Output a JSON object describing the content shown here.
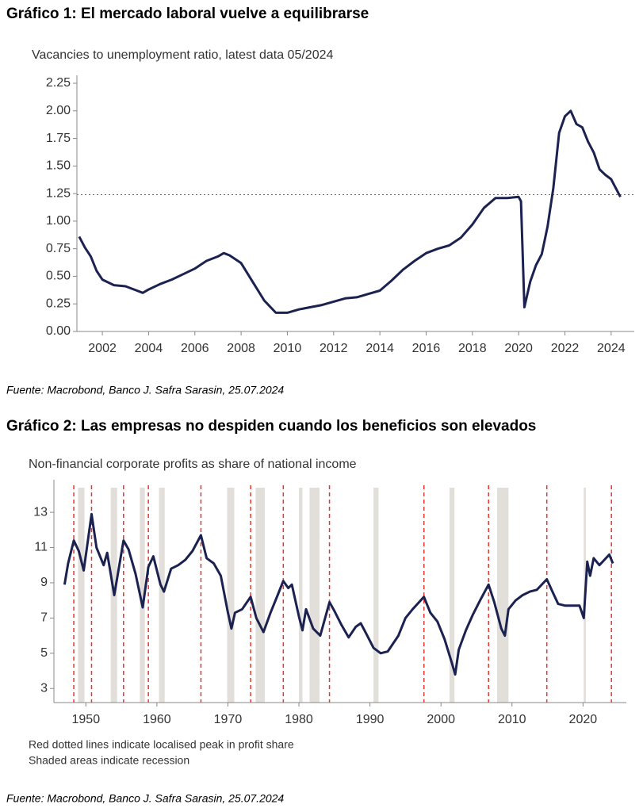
{
  "chart_data": [
    {
      "type": "line",
      "title": "Gráfico 1: El mercado laboral vuelve a equilibrarse",
      "subtitle": "Vacancies to unemployment ratio, latest data 05/2024",
      "source": "Fuente: Macrobond, Banco J. Safra Sarasin, 25.07.2024",
      "x": [
        2001.0,
        2001.25,
        2001.5,
        2001.75,
        2002.0,
        2002.5,
        2003.0,
        2003.5,
        2003.75,
        2004.0,
        2004.5,
        2005.0,
        2005.5,
        2006.0,
        2006.5,
        2007.0,
        2007.25,
        2007.5,
        2008.0,
        2008.5,
        2009.0,
        2009.5,
        2010.0,
        2010.5,
        2011.0,
        2011.5,
        2012.0,
        2012.5,
        2013.0,
        2013.5,
        2014.0,
        2014.5,
        2015.0,
        2015.5,
        2016.0,
        2016.5,
        2017.0,
        2017.5,
        2018.0,
        2018.5,
        2019.0,
        2019.5,
        2020.0,
        2020.1,
        2020.25,
        2020.5,
        2020.75,
        2021.0,
        2021.25,
        2021.5,
        2021.75,
        2022.0,
        2022.25,
        2022.5,
        2022.75,
        2023.0,
        2023.25,
        2023.5,
        2023.75,
        2024.0,
        2024.25,
        2024.4
      ],
      "series": [
        {
          "color": "#1b2250",
          "values": [
            0.86,
            0.76,
            0.68,
            0.55,
            0.47,
            0.42,
            0.41,
            0.37,
            0.35,
            0.38,
            0.43,
            0.47,
            0.52,
            0.57,
            0.64,
            0.68,
            0.71,
            0.69,
            0.62,
            0.45,
            0.28,
            0.17,
            0.17,
            0.2,
            0.22,
            0.24,
            0.27,
            0.3,
            0.31,
            0.34,
            0.37,
            0.46,
            0.56,
            0.64,
            0.71,
            0.75,
            0.78,
            0.85,
            0.97,
            1.12,
            1.21,
            1.21,
            1.22,
            1.18,
            0.22,
            0.45,
            0.6,
            0.7,
            0.95,
            1.3,
            1.8,
            1.95,
            2.0,
            1.88,
            1.85,
            1.72,
            1.62,
            1.47,
            1.42,
            1.38,
            1.28,
            1.22
          ]
        }
      ],
      "reference_line": 1.24,
      "reference_color": "#666666",
      "xlim": [
        2000.9,
        2025.0
      ],
      "ylim": [
        0,
        2.25
      ],
      "xticks": [
        2002,
        2004,
        2006,
        2008,
        2010,
        2012,
        2014,
        2016,
        2018,
        2020,
        2022,
        2024
      ],
      "yticks": [
        {
          "value": 0,
          "label": "0.00"
        },
        {
          "value": 0.25,
          "label": "0.25"
        },
        {
          "value": 0.5,
          "label": "0.50"
        },
        {
          "value": 0.75,
          "label": "0.75"
        },
        {
          "value": 1,
          "label": "1.00"
        },
        {
          "value": 1.25,
          "label": "1.25"
        },
        {
          "value": 1.5,
          "label": "1.50"
        },
        {
          "value": 1.75,
          "label": "1.75"
        },
        {
          "value": 2,
          "label": "2.00"
        },
        {
          "value": 2.25,
          "label": "2.25"
        }
      ]
    },
    {
      "type": "line",
      "title": "Gráfico 2: Las empresas no despiden cuando los beneficios son elevados",
      "subtitle": "Non-financial corporate profits as share of national income",
      "notes": [
        "Red dotted lines indicate localised peak in profit share",
        "Shaded areas indicate recession"
      ],
      "source": "Fuente: Macrobond, Banco J. Safra Sarasin, 25.07.2024",
      "x": [
        1947,
        1947.5,
        1948.3,
        1949,
        1949.7,
        1950.8,
        1951.5,
        1952.5,
        1953,
        1954,
        1955.3,
        1956,
        1957,
        1958,
        1958.8,
        1959.5,
        1960.5,
        1961,
        1962,
        1963,
        1964,
        1965,
        1966.2,
        1967,
        1968,
        1969,
        1970,
        1970.5,
        1971,
        1972,
        1973.2,
        1974,
        1975,
        1976,
        1977,
        1977.8,
        1978.5,
        1979,
        1980,
        1980.5,
        1981,
        1982,
        1983,
        1984.3,
        1985,
        1986,
        1987,
        1988,
        1988.7,
        1989.5,
        1990.5,
        1991.5,
        1992.5,
        1994,
        1995,
        1996,
        1997.6,
        1998.5,
        1999.5,
        2000.5,
        2001.5,
        2002,
        2002.5,
        2003.5,
        2004.5,
        2005.5,
        2006.7,
        2007.5,
        2008.5,
        2009,
        2009.5,
        2010.5,
        2011.5,
        2012.5,
        2013.5,
        2014.9,
        2015.7,
        2016.5,
        2017.5,
        2018.5,
        2019.5,
        2020.1,
        2020.6,
        2021,
        2021.5,
        2022.3,
        2023,
        2023.7,
        2024.2
      ],
      "series": [
        {
          "color": "#1b2250",
          "values": [
            8.9,
            10.1,
            11.4,
            10.8,
            9.7,
            12.9,
            11.0,
            10.0,
            10.7,
            8.3,
            11.4,
            10.9,
            9.5,
            7.6,
            9.9,
            10.5,
            8.9,
            8.5,
            9.8,
            10.0,
            10.3,
            10.8,
            11.7,
            10.4,
            10.1,
            9.4,
            7.3,
            6.4,
            7.3,
            7.5,
            8.2,
            7.0,
            6.2,
            7.3,
            8.3,
            9.1,
            8.7,
            8.9,
            7.1,
            6.3,
            7.5,
            6.4,
            6.0,
            7.9,
            7.4,
            6.6,
            5.9,
            6.5,
            6.7,
            6.1,
            5.3,
            5.0,
            5.1,
            6.0,
            7.0,
            7.5,
            8.2,
            7.3,
            6.8,
            5.8,
            4.5,
            3.8,
            5.2,
            6.3,
            7.2,
            8.0,
            8.9,
            7.9,
            6.4,
            6.0,
            7.5,
            8.0,
            8.3,
            8.5,
            8.6,
            9.2,
            8.5,
            7.8,
            7.7,
            7.7,
            7.7,
            7.0,
            10.2,
            9.4,
            10.4,
            10.0,
            10.3,
            10.6,
            10.1
          ]
        }
      ],
      "recessions": [
        [
          1948.9,
          1949.8
        ],
        [
          1953.5,
          1954.4
        ],
        [
          1957.6,
          1958.3
        ],
        [
          1960.3,
          1961.1
        ],
        [
          1969.9,
          1970.9
        ],
        [
          1973.9,
          1975.2
        ],
        [
          1980.0,
          1980.5
        ],
        [
          1981.5,
          1982.9
        ],
        [
          1990.5,
          1991.2
        ],
        [
          2001.2,
          2001.9
        ],
        [
          2007.9,
          2009.5
        ],
        [
          2020.1,
          2020.4
        ]
      ],
      "recession_color": "#e2deda",
      "peaks": [
        1948.3,
        1950.8,
        1955.3,
        1958.8,
        1966.2,
        1973.2,
        1977.8,
        1984.3,
        1997.6,
        2006.7,
        2014.9,
        2024.0
      ],
      "peak_color": "#e8342e",
      "xlim": [
        1945.5,
        2026.1
      ],
      "ylim": [
        2.2,
        14.4
      ],
      "xticks": [
        1950,
        1960,
        1970,
        1980,
        1990,
        2000,
        2010,
        2020
      ],
      "yticks": [
        3,
        5,
        7,
        9,
        11,
        13
      ]
    }
  ]
}
